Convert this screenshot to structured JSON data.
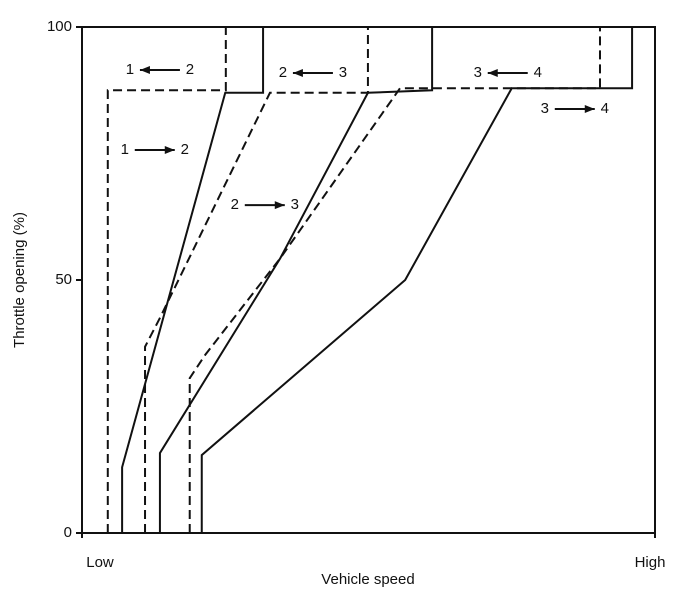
{
  "chart_data": {
    "type": "line",
    "xlabel": "Vehicle speed",
    "ylabel": "Throttle opening (%)",
    "xlim": [
      0,
      100
    ],
    "ylim": [
      0,
      100
    ],
    "xticks": [
      {
        "value": 0,
        "label": "Low"
      },
      {
        "value": 100,
        "label": "High"
      }
    ],
    "yticks": [
      0,
      50,
      100
    ],
    "series": [
      {
        "style": "solid",
        "color": "#111",
        "x": [
          7.0,
          7.0,
          25.0,
          31.6,
          31.6
        ],
        "values": [
          0,
          13.0,
          87.0,
          87.0,
          100
        ]
      },
      {
        "style": "solid",
        "color": "#111",
        "x": [
          13.6,
          13.6,
          34.6,
          49.9,
          61.1,
          61.1
        ],
        "values": [
          0,
          15.8,
          54.3,
          87.0,
          87.5,
          100
        ]
      },
      {
        "style": "solid",
        "color": "#111",
        "x": [
          20.9,
          20.9,
          56.4,
          75.0,
          96.0,
          96.0
        ],
        "values": [
          0,
          15.4,
          50.0,
          87.9,
          87.9,
          100
        ]
      },
      {
        "style": "dashed",
        "color": "#111",
        "x": [
          4.5,
          4.5,
          25.1,
          25.1
        ],
        "values": [
          0,
          87.5,
          87.5,
          100
        ]
      },
      {
        "style": "dashed",
        "color": "#111",
        "x": [
          11.0,
          11.0,
          13.6,
          32.8,
          49.9,
          49.9
        ],
        "values": [
          0,
          36.8,
          42.5,
          87.0,
          87.0,
          100
        ]
      },
      {
        "style": "dashed",
        "color": "#111",
        "x": [
          18.8,
          18.8,
          21.5,
          34.6,
          55.5,
          90.4,
          90.4
        ],
        "values": [
          0,
          30.6,
          35.2,
          54.3,
          87.9,
          87.9,
          100
        ]
      }
    ],
    "annotations": [
      {
        "left": "1",
        "right": "2",
        "arrow": "left",
        "x": 13.6,
        "y": 91.5
      },
      {
        "left": "1",
        "right": "2",
        "arrow": "right",
        "x": 12.7,
        "y": 75.7
      },
      {
        "left": "2",
        "right": "3",
        "arrow": "left",
        "x": 40.3,
        "y": 90.9
      },
      {
        "left": "2",
        "right": "3",
        "arrow": "right",
        "x": 31.9,
        "y": 64.8
      },
      {
        "left": "3",
        "right": "4",
        "arrow": "left",
        "x": 74.3,
        "y": 90.9
      },
      {
        "left": "3",
        "right": "4",
        "arrow": "right",
        "x": 86.0,
        "y": 83.8
      }
    ]
  }
}
